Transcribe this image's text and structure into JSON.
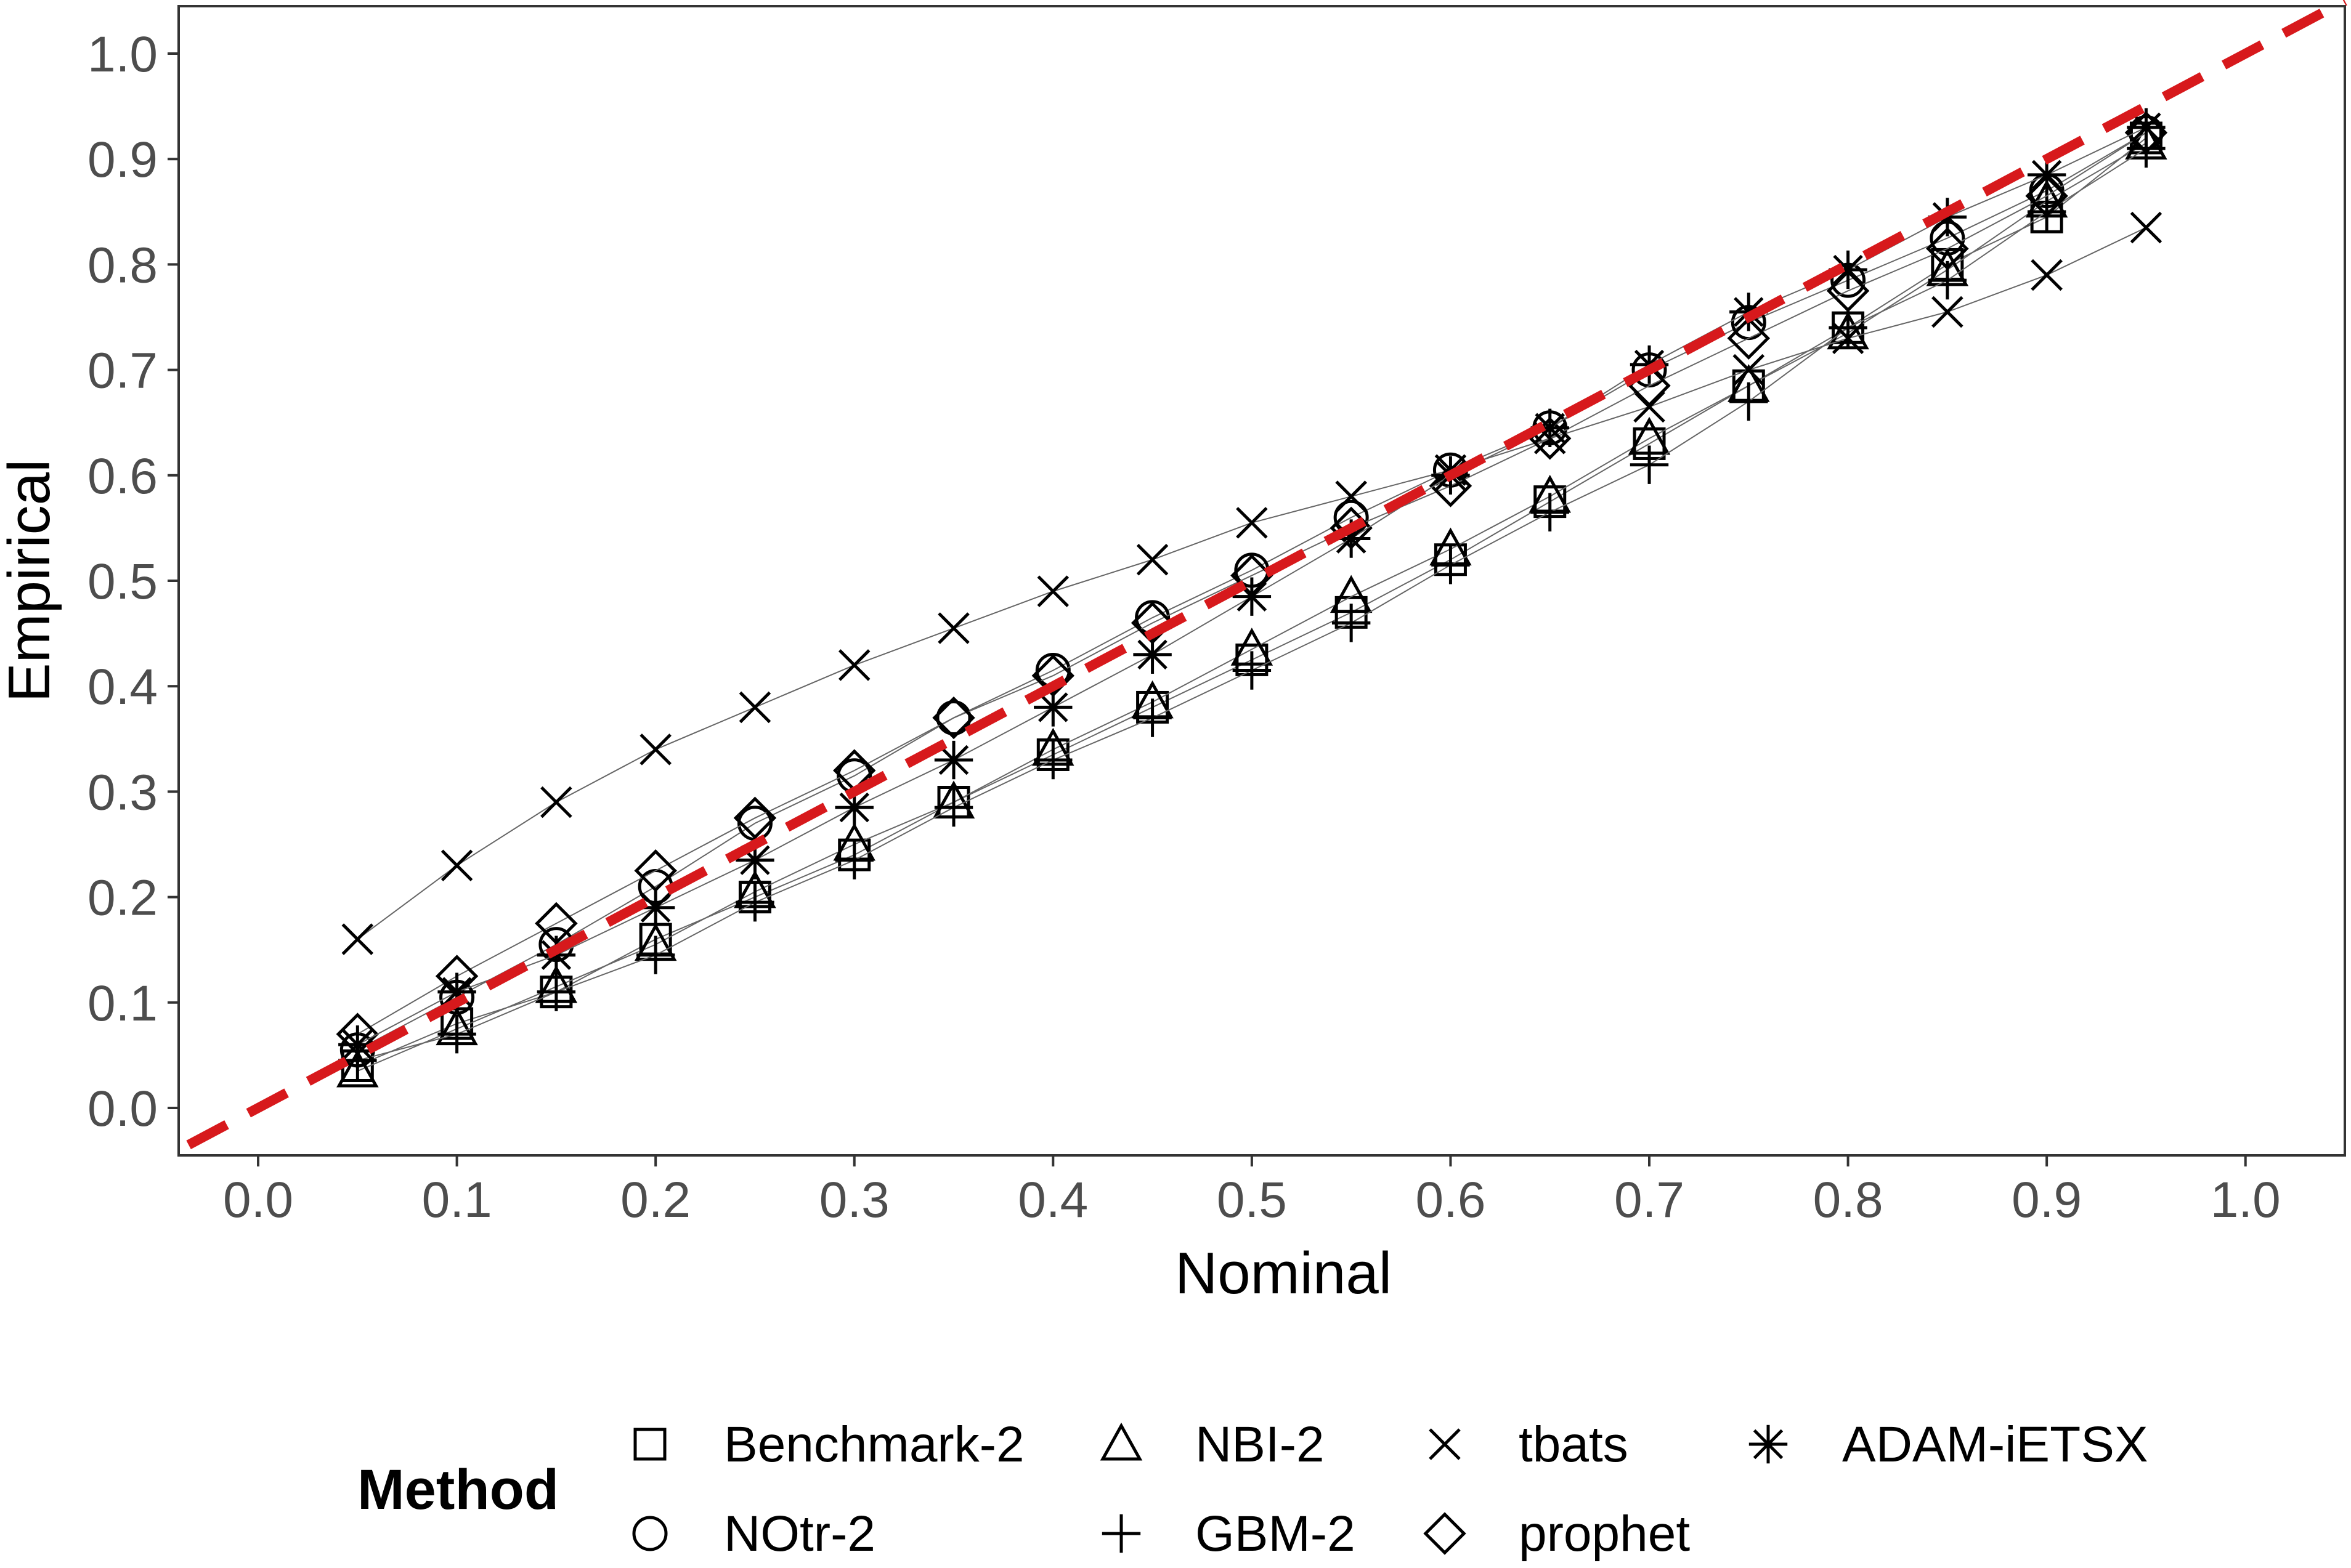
{
  "chart_data": {
    "type": "line",
    "xlabel": "Nominal",
    "ylabel": "Empirical",
    "xlim": [
      -0.04,
      1.05
    ],
    "ylim": [
      -0.045,
      1.045
    ],
    "x_ticks": [
      "0.0",
      "0.1",
      "0.2",
      "0.3",
      "0.4",
      "0.5",
      "0.6",
      "0.7",
      "0.8",
      "0.9",
      "1.0"
    ],
    "y_ticks": [
      "0.0",
      "0.1",
      "0.2",
      "0.3",
      "0.4",
      "0.5",
      "0.6",
      "0.7",
      "0.8",
      "0.9",
      "1.0"
    ],
    "grid": false,
    "reference_line": {
      "from": [
        -0.035,
        -0.035
      ],
      "to": [
        1.05,
        1.05
      ],
      "style": "dashed",
      "color": "#d7191c"
    },
    "x": [
      0.05,
      0.1,
      0.15,
      0.2,
      0.25,
      0.3,
      0.35,
      0.4,
      0.45,
      0.5,
      0.55,
      0.6,
      0.65,
      0.7,
      0.75,
      0.8,
      0.85,
      0.9,
      0.95
    ],
    "legend": {
      "title": "Method",
      "position": "bottom"
    },
    "series": [
      {
        "name": "Benchmark-2",
        "marker": "square",
        "values": [
          0.04,
          0.08,
          0.11,
          0.16,
          0.2,
          0.24,
          0.29,
          0.335,
          0.38,
          0.425,
          0.47,
          0.52,
          0.575,
          0.63,
          0.685,
          0.74,
          0.8,
          0.845,
          0.92
        ]
      },
      {
        "name": "NOtr-2",
        "marker": "circle",
        "values": [
          0.055,
          0.105,
          0.155,
          0.21,
          0.27,
          0.315,
          0.37,
          0.415,
          0.465,
          0.51,
          0.56,
          0.605,
          0.645,
          0.7,
          0.745,
          0.785,
          0.825,
          0.87,
          0.925
        ]
      },
      {
        "name": "NBI-2",
        "marker": "triangle",
        "values": [
          0.035,
          0.075,
          0.115,
          0.155,
          0.205,
          0.25,
          0.29,
          0.34,
          0.385,
          0.435,
          0.485,
          0.53,
          0.58,
          0.635,
          0.685,
          0.735,
          0.795,
          0.86,
          0.915
        ]
      },
      {
        "name": "GBM-2",
        "marker": "plus",
        "values": [
          0.045,
          0.07,
          0.11,
          0.145,
          0.195,
          0.235,
          0.285,
          0.33,
          0.37,
          0.415,
          0.46,
          0.515,
          0.565,
          0.61,
          0.67,
          0.74,
          0.785,
          0.85,
          0.91
        ]
      },
      {
        "name": "tbats",
        "marker": "cross",
        "values": [
          0.16,
          0.23,
          0.29,
          0.34,
          0.38,
          0.42,
          0.455,
          0.49,
          0.52,
          0.555,
          0.58,
          0.605,
          0.635,
          0.665,
          0.7,
          0.73,
          0.755,
          0.79,
          0.835
        ]
      },
      {
        "name": "prophet",
        "marker": "diamond",
        "values": [
          0.07,
          0.125,
          0.175,
          0.225,
          0.275,
          0.32,
          0.37,
          0.41,
          0.46,
          0.505,
          0.55,
          0.59,
          0.635,
          0.685,
          0.73,
          0.775,
          0.815,
          0.865,
          0.925
        ]
      },
      {
        "name": "ADAM-iETSX",
        "marker": "asterisk",
        "values": [
          0.06,
          0.11,
          0.145,
          0.19,
          0.235,
          0.285,
          0.33,
          0.38,
          0.43,
          0.485,
          0.54,
          0.6,
          0.645,
          0.705,
          0.755,
          0.795,
          0.845,
          0.885,
          0.93
        ]
      }
    ]
  }
}
